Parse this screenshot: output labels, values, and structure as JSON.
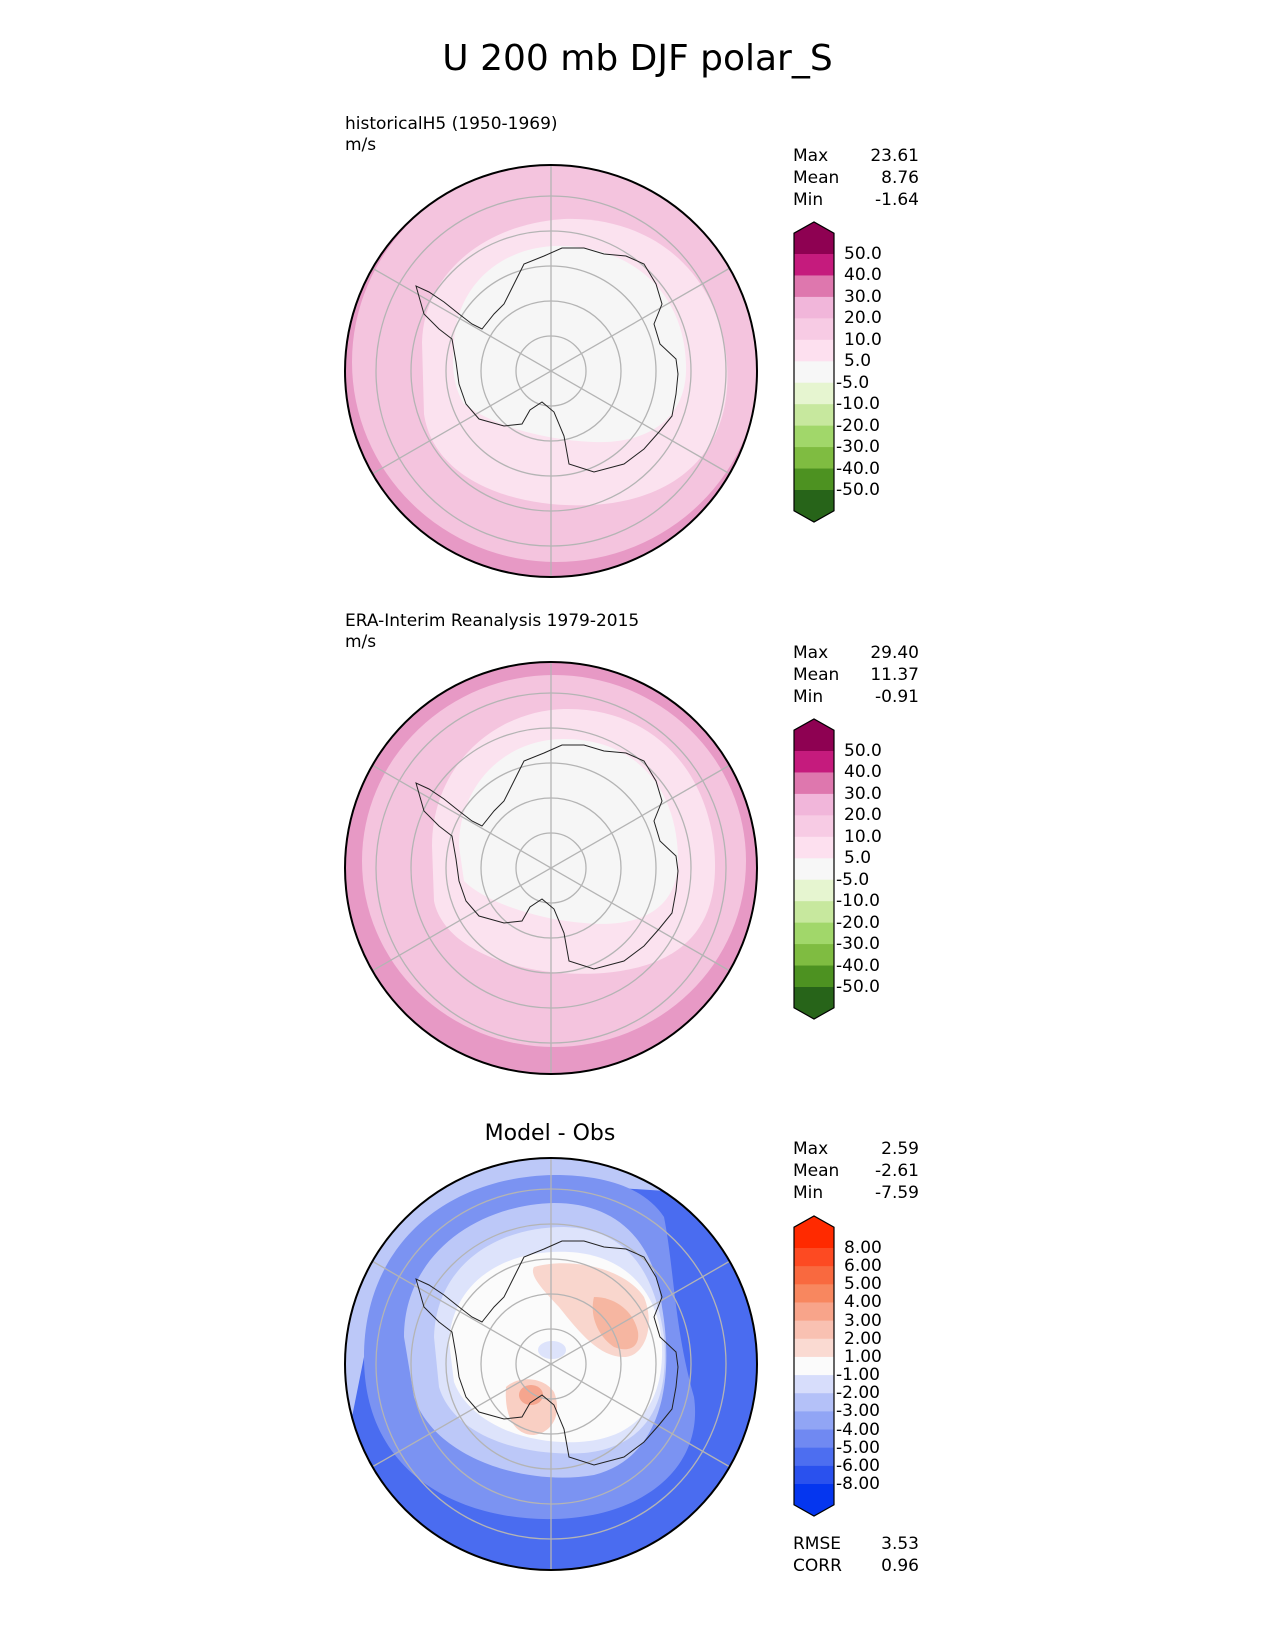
{
  "title": "U 200 mb DJF polar_S",
  "panels": [
    {
      "id": "model",
      "title": "historicalH5 (1950-1969)",
      "units": "m/s",
      "stats": [
        {
          "label": "Max",
          "value": "23.61"
        },
        {
          "label": "Mean",
          "value": "8.76"
        },
        {
          "label": "Min",
          "value": "-1.64"
        }
      ],
      "colorbar": {
        "labels": [
          "50.0",
          "40.0",
          "30.0",
          "20.0",
          "10.0",
          "5.0",
          "-5.0",
          "-10.0",
          "-20.0",
          "-30.0",
          "-40.0",
          "-50.0"
        ],
        "colors": [
          "#8e0152",
          "#c51b7d",
          "#de77ae",
          "#f1b6da",
          "#f7cbe4",
          "#fde0ef",
          "#f7f7f7",
          "#e6f5d0",
          "#c7e89e",
          "#a1d76a",
          "#7fbc41",
          "#4d9221",
          "#276419"
        ]
      }
    },
    {
      "id": "obs",
      "title": "ERA-Interim Reanalysis 1979-2015",
      "units": "m/s",
      "stats": [
        {
          "label": "Max",
          "value": "29.40"
        },
        {
          "label": "Mean",
          "value": "11.37"
        },
        {
          "label": "Min",
          "value": "-0.91"
        }
      ],
      "colorbar": {
        "labels": [
          "50.0",
          "40.0",
          "30.0",
          "20.0",
          "10.0",
          "5.0",
          "-5.0",
          "-10.0",
          "-20.0",
          "-30.0",
          "-40.0",
          "-50.0"
        ],
        "colors": [
          "#8e0152",
          "#c51b7d",
          "#de77ae",
          "#f1b6da",
          "#f7cbe4",
          "#fde0ef",
          "#f7f7f7",
          "#e6f5d0",
          "#c7e89e",
          "#a1d76a",
          "#7fbc41",
          "#4d9221",
          "#276419"
        ]
      }
    },
    {
      "id": "diff",
      "title": "Model - Obs",
      "stats": [
        {
          "label": "Max",
          "value": "2.59"
        },
        {
          "label": "Mean",
          "value": "-2.61"
        },
        {
          "label": "Min",
          "value": "-7.59"
        }
      ],
      "extra_stats": [
        {
          "label": "RMSE",
          "value": "3.53"
        },
        {
          "label": "CORR",
          "value": "0.96"
        }
      ],
      "colorbar": {
        "labels": [
          "8.00",
          "6.00",
          "5.00",
          "4.00",
          "3.00",
          "2.00",
          "1.00",
          "-1.00",
          "-2.00",
          "-3.00",
          "-4.00",
          "-5.00",
          "-6.00",
          "-8.00"
        ],
        "colors": [
          "#ff2a00",
          "#fd4a22",
          "#f9693f",
          "#f8875f",
          "#f8a48a",
          "#f9c1b2",
          "#fadad2",
          "#fbfbfb",
          "#d7ddfb",
          "#b4c1f8",
          "#91a5f5",
          "#7089f2",
          "#4d6ef0",
          "#2a51ee",
          "#0536ef"
        ]
      }
    }
  ],
  "colors": {
    "pink_ring_outer": "#e799c5",
    "pink_ring_mid": "#f4c4de",
    "pink_ring_inner": "#fbe2ef",
    "interior": "#f6f6f6",
    "blue_dark": "#2c55ee",
    "blue_mid": "#7b93f2",
    "blue_light": "#bcc8f8",
    "red_light": "#f9cfc3"
  }
}
